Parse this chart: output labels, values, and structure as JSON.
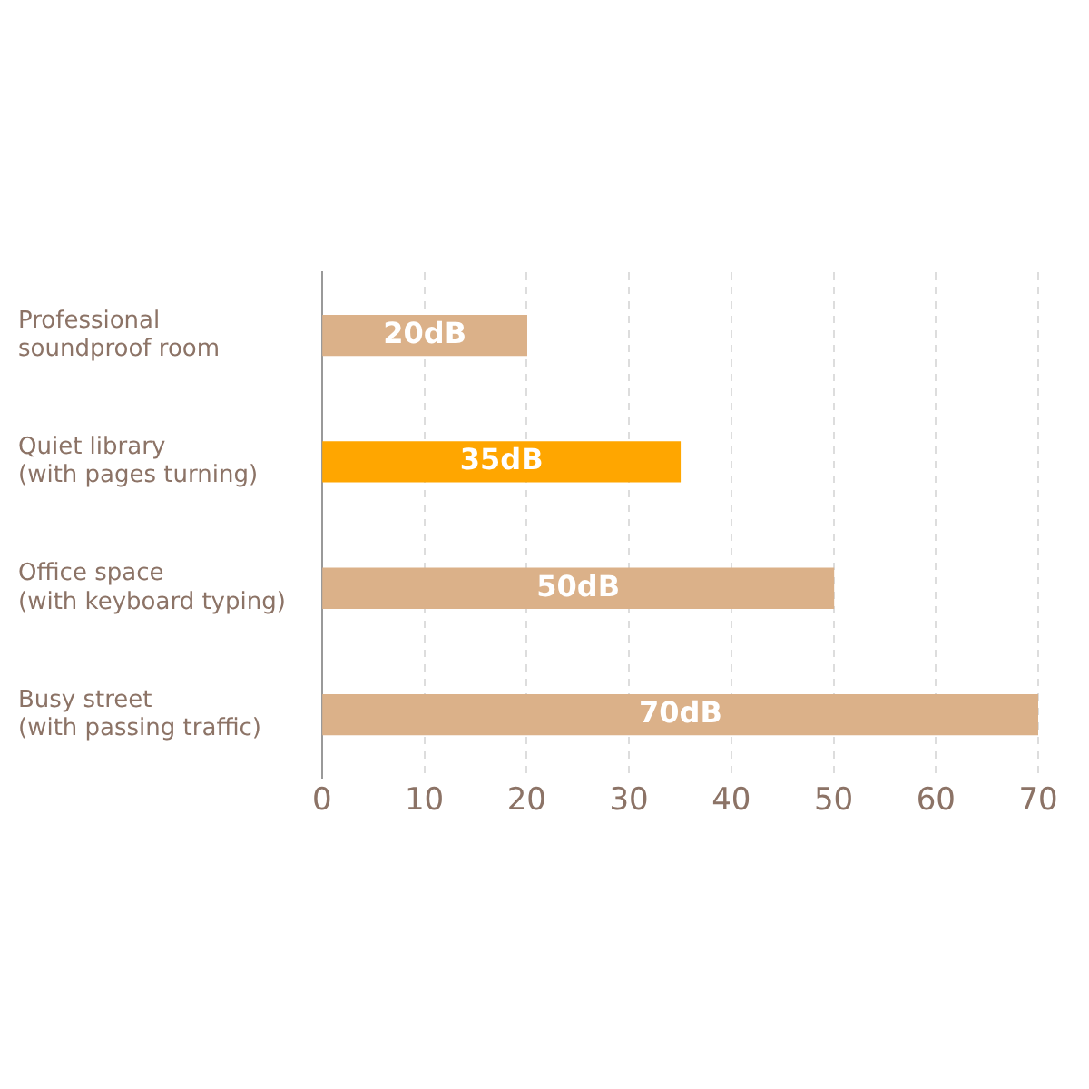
{
  "chart_data": {
    "type": "bar",
    "orientation": "horizontal",
    "categories": [
      "Professional\nsoundproof room",
      "Quiet library\n(with pages turning)",
      "Office space\n(with keyboard typing)",
      "Busy street\n(with passing traffic)"
    ],
    "values": [
      20,
      35,
      50,
      70
    ],
    "colors": [
      "#dbb189",
      "#ffa600",
      "#dbb189",
      "#dbb189"
    ],
    "value_labels": [
      "20dB",
      "35dB",
      "50dB",
      "70dB"
    ],
    "xlim": [
      0,
      70
    ],
    "xticks": [
      0,
      10,
      20,
      30,
      40,
      50,
      60,
      70
    ],
    "grid": "x",
    "legend": false
  }
}
